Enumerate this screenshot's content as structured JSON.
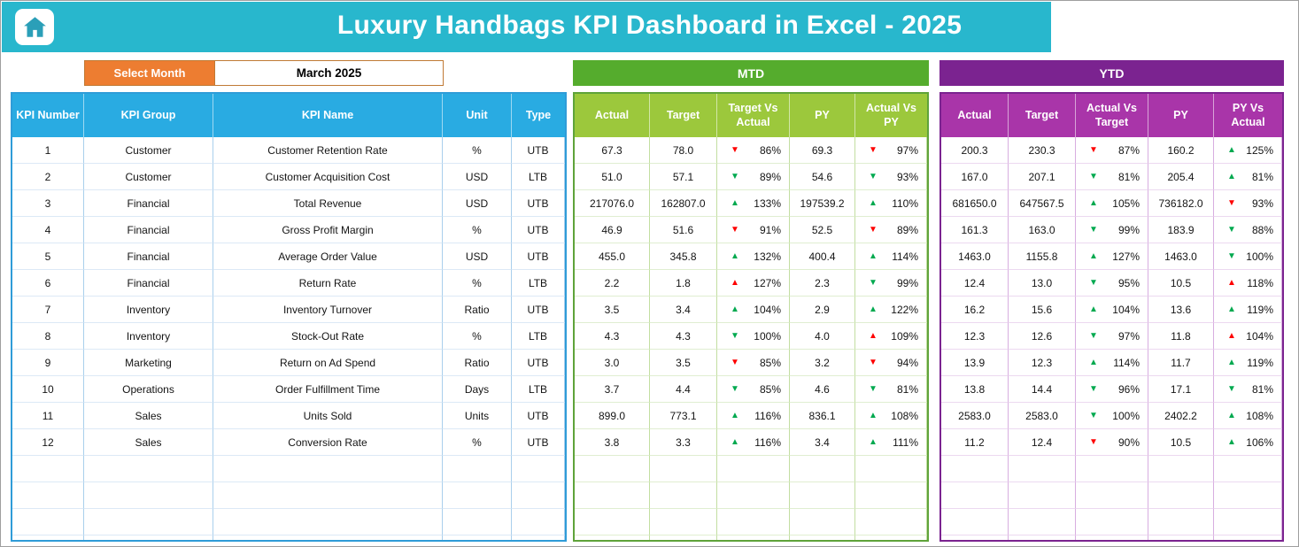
{
  "header": {
    "title": "Luxury Handbags KPI Dashboard  in Excel - 2025"
  },
  "controls": {
    "select_month_label": "Select Month",
    "selected_month": "March 2025"
  },
  "sections": {
    "mtd_label": "MTD",
    "ytd_label": "YTD"
  },
  "icons": {
    "home": "home-icon",
    "trend_up": "▲",
    "trend_down": "▼"
  },
  "colors": {
    "title_bar_cyan": "#28B7CD",
    "select_month_orange": "#ED7D31",
    "left_header_blue": "#29ABE2",
    "mtd_bar_green": "#55AC2D",
    "mtd_header_green": "#9CC83C",
    "ytd_bar_purple": "#7B2390",
    "ytd_header_magenta": "#A935A9",
    "trend_good_green": "#00A94F",
    "trend_bad_red": "#FE0000"
  },
  "table": {
    "left_headers": [
      "KPI Number",
      "KPI Group",
      "KPI Name",
      "Unit",
      "Type"
    ],
    "mtd_headers": [
      "Actual",
      "Target",
      "Target Vs Actual",
      "PY",
      "Actual Vs PY"
    ],
    "ytd_headers": [
      "Actual",
      "Target",
      "Actual Vs Target",
      "PY",
      "PY Vs Actual"
    ],
    "rows": [
      {
        "kpi_number": "1",
        "kpi_group": "Customer",
        "kpi_name": "Customer Retention Rate",
        "unit": "%",
        "type": "UTB",
        "mtd": {
          "actual": "67.3",
          "target": "78.0",
          "target_vs_actual": {
            "dir": "down",
            "color": "red",
            "value": "86%"
          },
          "py": "69.3",
          "actual_vs_py": {
            "dir": "down",
            "color": "red",
            "value": "97%"
          }
        },
        "ytd": {
          "actual": "200.3",
          "target": "230.3",
          "actual_vs_target": {
            "dir": "down",
            "color": "red",
            "value": "87%"
          },
          "py": "160.2",
          "py_vs_actual": {
            "dir": "up",
            "color": "green",
            "value": "125%"
          }
        }
      },
      {
        "kpi_number": "2",
        "kpi_group": "Customer",
        "kpi_name": "Customer Acquisition Cost",
        "unit": "USD",
        "type": "LTB",
        "mtd": {
          "actual": "51.0",
          "target": "57.1",
          "target_vs_actual": {
            "dir": "down",
            "color": "green",
            "value": "89%"
          },
          "py": "54.6",
          "actual_vs_py": {
            "dir": "down",
            "color": "green",
            "value": "93%"
          }
        },
        "ytd": {
          "actual": "167.0",
          "target": "207.1",
          "actual_vs_target": {
            "dir": "down",
            "color": "green",
            "value": "81%"
          },
          "py": "205.4",
          "py_vs_actual": {
            "dir": "up",
            "color": "green",
            "value": "81%"
          }
        }
      },
      {
        "kpi_number": "3",
        "kpi_group": "Financial",
        "kpi_name": "Total Revenue",
        "unit": "USD",
        "type": "UTB",
        "mtd": {
          "actual": "217076.0",
          "target": "162807.0",
          "target_vs_actual": {
            "dir": "up",
            "color": "green",
            "value": "133%"
          },
          "py": "197539.2",
          "actual_vs_py": {
            "dir": "up",
            "color": "green",
            "value": "110%"
          }
        },
        "ytd": {
          "actual": "681650.0",
          "target": "647567.5",
          "actual_vs_target": {
            "dir": "up",
            "color": "green",
            "value": "105%"
          },
          "py": "736182.0",
          "py_vs_actual": {
            "dir": "down",
            "color": "red",
            "value": "93%"
          }
        }
      },
      {
        "kpi_number": "4",
        "kpi_group": "Financial",
        "kpi_name": "Gross Profit Margin",
        "unit": "%",
        "type": "UTB",
        "mtd": {
          "actual": "46.9",
          "target": "51.6",
          "target_vs_actual": {
            "dir": "down",
            "color": "red",
            "value": "91%"
          },
          "py": "52.5",
          "actual_vs_py": {
            "dir": "down",
            "color": "red",
            "value": "89%"
          }
        },
        "ytd": {
          "actual": "161.3",
          "target": "163.0",
          "actual_vs_target": {
            "dir": "down",
            "color": "green",
            "value": "99%"
          },
          "py": "183.9",
          "py_vs_actual": {
            "dir": "down",
            "color": "green",
            "value": "88%"
          }
        }
      },
      {
        "kpi_number": "5",
        "kpi_group": "Financial",
        "kpi_name": "Average Order Value",
        "unit": "USD",
        "type": "UTB",
        "mtd": {
          "actual": "455.0",
          "target": "345.8",
          "target_vs_actual": {
            "dir": "up",
            "color": "green",
            "value": "132%"
          },
          "py": "400.4",
          "actual_vs_py": {
            "dir": "up",
            "color": "green",
            "value": "114%"
          }
        },
        "ytd": {
          "actual": "1463.0",
          "target": "1155.8",
          "actual_vs_target": {
            "dir": "up",
            "color": "green",
            "value": "127%"
          },
          "py": "1463.0",
          "py_vs_actual": {
            "dir": "down",
            "color": "green",
            "value": "100%"
          }
        }
      },
      {
        "kpi_number": "6",
        "kpi_group": "Financial",
        "kpi_name": "Return Rate",
        "unit": "%",
        "type": "LTB",
        "mtd": {
          "actual": "2.2",
          "target": "1.8",
          "target_vs_actual": {
            "dir": "up",
            "color": "red",
            "value": "127%"
          },
          "py": "2.3",
          "actual_vs_py": {
            "dir": "down",
            "color": "green",
            "value": "99%"
          }
        },
        "ytd": {
          "actual": "12.4",
          "target": "13.0",
          "actual_vs_target": {
            "dir": "down",
            "color": "green",
            "value": "95%"
          },
          "py": "10.5",
          "py_vs_actual": {
            "dir": "up",
            "color": "red",
            "value": "118%"
          }
        }
      },
      {
        "kpi_number": "7",
        "kpi_group": "Inventory",
        "kpi_name": "Inventory Turnover",
        "unit": "Ratio",
        "type": "UTB",
        "mtd": {
          "actual": "3.5",
          "target": "3.4",
          "target_vs_actual": {
            "dir": "up",
            "color": "green",
            "value": "104%"
          },
          "py": "2.9",
          "actual_vs_py": {
            "dir": "up",
            "color": "green",
            "value": "122%"
          }
        },
        "ytd": {
          "actual": "16.2",
          "target": "15.6",
          "actual_vs_target": {
            "dir": "up",
            "color": "green",
            "value": "104%"
          },
          "py": "13.6",
          "py_vs_actual": {
            "dir": "up",
            "color": "green",
            "value": "119%"
          }
        }
      },
      {
        "kpi_number": "8",
        "kpi_group": "Inventory",
        "kpi_name": "Stock-Out Rate",
        "unit": "%",
        "type": "LTB",
        "mtd": {
          "actual": "4.3",
          "target": "4.3",
          "target_vs_actual": {
            "dir": "down",
            "color": "green",
            "value": "100%"
          },
          "py": "4.0",
          "actual_vs_py": {
            "dir": "up",
            "color": "red",
            "value": "109%"
          }
        },
        "ytd": {
          "actual": "12.3",
          "target": "12.6",
          "actual_vs_target": {
            "dir": "down",
            "color": "green",
            "value": "97%"
          },
          "py": "11.8",
          "py_vs_actual": {
            "dir": "up",
            "color": "red",
            "value": "104%"
          }
        }
      },
      {
        "kpi_number": "9",
        "kpi_group": "Marketing",
        "kpi_name": "Return on Ad Spend",
        "unit": "Ratio",
        "type": "UTB",
        "mtd": {
          "actual": "3.0",
          "target": "3.5",
          "target_vs_actual": {
            "dir": "down",
            "color": "red",
            "value": "85%"
          },
          "py": "3.2",
          "actual_vs_py": {
            "dir": "down",
            "color": "red",
            "value": "94%"
          }
        },
        "ytd": {
          "actual": "13.9",
          "target": "12.3",
          "actual_vs_target": {
            "dir": "up",
            "color": "green",
            "value": "114%"
          },
          "py": "11.7",
          "py_vs_actual": {
            "dir": "up",
            "color": "green",
            "value": "119%"
          }
        }
      },
      {
        "kpi_number": "10",
        "kpi_group": "Operations",
        "kpi_name": "Order Fulfillment Time",
        "unit": "Days",
        "type": "LTB",
        "mtd": {
          "actual": "3.7",
          "target": "4.4",
          "target_vs_actual": {
            "dir": "down",
            "color": "green",
            "value": "85%"
          },
          "py": "4.6",
          "actual_vs_py": {
            "dir": "down",
            "color": "green",
            "value": "81%"
          }
        },
        "ytd": {
          "actual": "13.8",
          "target": "14.4",
          "actual_vs_target": {
            "dir": "down",
            "color": "green",
            "value": "96%"
          },
          "py": "17.1",
          "py_vs_actual": {
            "dir": "down",
            "color": "green",
            "value": "81%"
          }
        }
      },
      {
        "kpi_number": "11",
        "kpi_group": "Sales",
        "kpi_name": "Units Sold",
        "unit": "Units",
        "type": "UTB",
        "mtd": {
          "actual": "899.0",
          "target": "773.1",
          "target_vs_actual": {
            "dir": "up",
            "color": "green",
            "value": "116%"
          },
          "py": "836.1",
          "actual_vs_py": {
            "dir": "up",
            "color": "green",
            "value": "108%"
          }
        },
        "ytd": {
          "actual": "2583.0",
          "target": "2583.0",
          "actual_vs_target": {
            "dir": "down",
            "color": "green",
            "value": "100%"
          },
          "py": "2402.2",
          "py_vs_actual": {
            "dir": "up",
            "color": "green",
            "value": "108%"
          }
        }
      },
      {
        "kpi_number": "12",
        "kpi_group": "Sales",
        "kpi_name": "Conversion Rate",
        "unit": "%",
        "type": "UTB",
        "mtd": {
          "actual": "3.8",
          "target": "3.3",
          "target_vs_actual": {
            "dir": "up",
            "color": "green",
            "value": "116%"
          },
          "py": "3.4",
          "actual_vs_py": {
            "dir": "up",
            "color": "green",
            "value": "111%"
          }
        },
        "ytd": {
          "actual": "11.2",
          "target": "12.4",
          "actual_vs_target": {
            "dir": "down",
            "color": "red",
            "value": "90%"
          },
          "py": "10.5",
          "py_vs_actual": {
            "dir": "up",
            "color": "green",
            "value": "106%"
          }
        }
      }
    ]
  }
}
